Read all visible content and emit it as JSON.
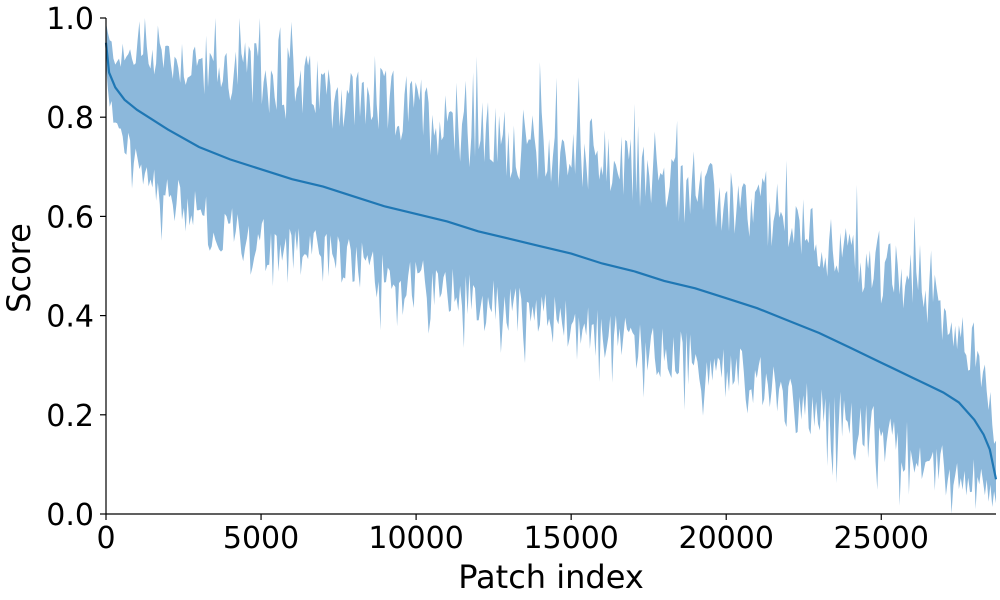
{
  "chart_data": {
    "type": "line",
    "title": "",
    "xlabel": "Patch index",
    "ylabel": "Score",
    "xlim": [
      0,
      28700
    ],
    "ylim": [
      0.0,
      1.0
    ],
    "x_ticks": [
      0,
      5000,
      10000,
      15000,
      20000,
      25000
    ],
    "x_tick_labels": [
      "0",
      "5000",
      "10000",
      "15000",
      "20000",
      "25000"
    ],
    "y_ticks": [
      0.0,
      0.2,
      0.4,
      0.6,
      0.8,
      1.0
    ],
    "y_tick_labels": [
      "0.0",
      "0.2",
      "0.4",
      "0.6",
      "0.8",
      "1.0"
    ],
    "grid": false,
    "legend": "none",
    "colors": {
      "line": "#1f77b4",
      "band": "#8cb8db"
    },
    "series": [
      {
        "x": [
          0,
          100,
          300,
          600,
          1000,
          1500,
          2000,
          3000,
          4000,
          5000,
          6000,
          7000,
          8000,
          9000,
          10000,
          11000,
          12000,
          13000,
          14000,
          15000,
          16000,
          17000,
          18000,
          19000,
          20000,
          21000,
          22000,
          23000,
          24000,
          25000,
          26000,
          26500,
          27000,
          27500,
          28000,
          28300,
          28500,
          28700
        ],
        "mean": [
          0.95,
          0.89,
          0.86,
          0.835,
          0.815,
          0.795,
          0.775,
          0.74,
          0.715,
          0.695,
          0.675,
          0.66,
          0.64,
          0.62,
          0.605,
          0.59,
          0.57,
          0.555,
          0.54,
          0.525,
          0.505,
          0.49,
          0.47,
          0.455,
          0.435,
          0.415,
          0.39,
          0.365,
          0.335,
          0.305,
          0.275,
          0.26,
          0.245,
          0.225,
          0.19,
          0.16,
          0.13,
          0.07
        ],
        "upper": [
          1.0,
          0.97,
          0.95,
          0.95,
          0.97,
          0.98,
          0.98,
          0.97,
          0.96,
          0.95,
          0.93,
          0.93,
          0.91,
          0.9,
          0.89,
          0.86,
          0.84,
          0.82,
          0.82,
          0.8,
          0.78,
          0.76,
          0.74,
          0.72,
          0.7,
          0.68,
          0.66,
          0.62,
          0.59,
          0.56,
          0.53,
          0.51,
          0.47,
          0.42,
          0.37,
          0.33,
          0.26,
          0.14
        ],
        "lower": [
          0.88,
          0.82,
          0.76,
          0.72,
          0.68,
          0.63,
          0.58,
          0.54,
          0.51,
          0.49,
          0.47,
          0.46,
          0.45,
          0.43,
          0.41,
          0.4,
          0.38,
          0.36,
          0.34,
          0.33,
          0.31,
          0.29,
          0.27,
          0.25,
          0.23,
          0.21,
          0.17,
          0.15,
          0.12,
          0.1,
          0.07,
          0.05,
          0.03,
          0.03,
          0.02,
          0.02,
          0.01,
          0.02
        ]
      }
    ]
  }
}
